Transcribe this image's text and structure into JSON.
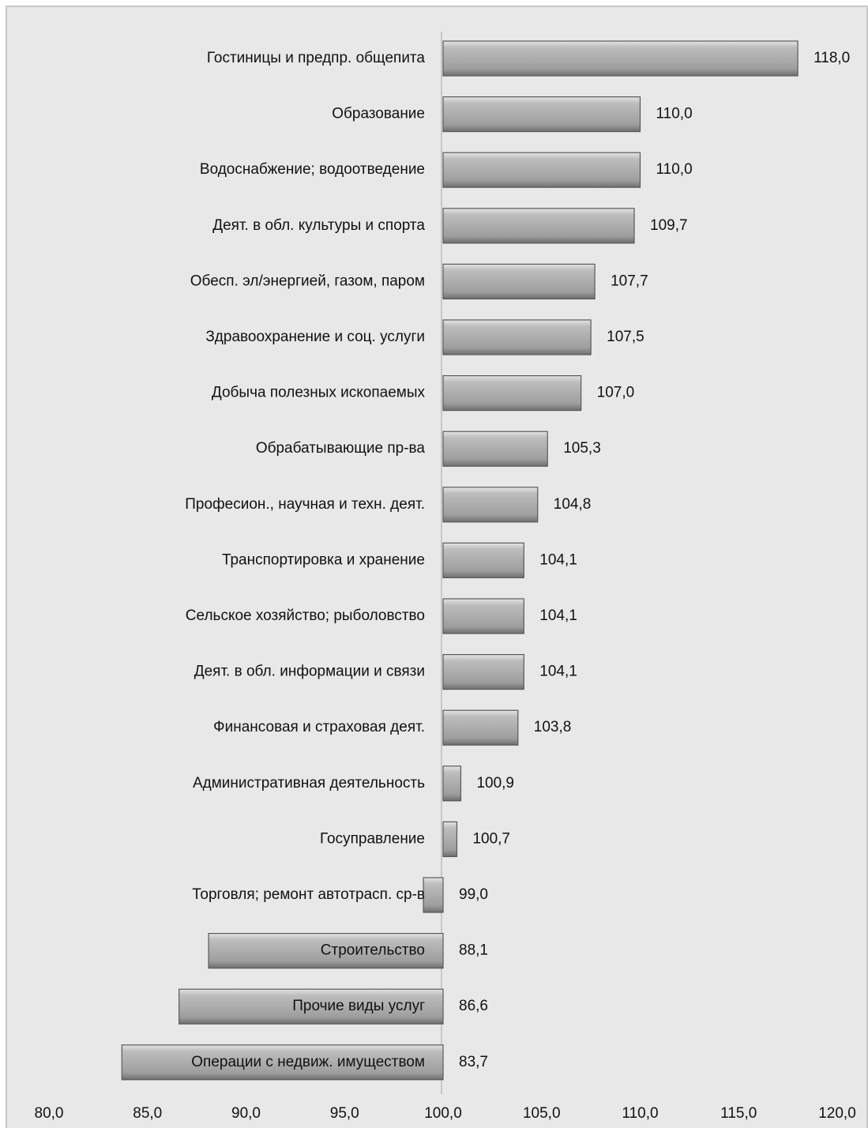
{
  "chart_data": {
    "type": "hbar",
    "categories": [
      "Гостиницы и предпр. общепита",
      "Образование",
      "Водоснабжение; водоотведение",
      "Деят. в обл. культуры и спорта",
      "Обесп. эл/энергией, газом, паром",
      "Здравоохранение и соц. услуги",
      "Добыча полезных ископаемых",
      "Обрабатывающие пр-ва",
      "Професион., научная и техн. деят.",
      "Транспортировка и хранение",
      "Сельское хозяйство; рыболовство",
      "Деят. в обл. информации и связи",
      "Финансовая и страховая деят.",
      "Административная деятельность",
      "Госуправление",
      "Торговля; ремонт автотрасп. ср-в",
      "Строительство",
      "Прочие виды услуг",
      "Операции с недвиж. имуществом"
    ],
    "values": [
      118.0,
      110.0,
      110.0,
      109.7,
      107.7,
      107.5,
      107.0,
      105.3,
      104.8,
      104.1,
      104.1,
      104.1,
      103.8,
      100.9,
      100.7,
      99.0,
      88.1,
      86.6,
      83.7
    ],
    "value_labels": [
      "118,0",
      "110,0",
      "110,0",
      "109,7",
      "107,7",
      "107,5",
      "107,0",
      "105,3",
      "104,8",
      "104,1",
      "104,1",
      "104,1",
      "103,8",
      "100,9",
      "100,7",
      "99,0",
      "88,1",
      "86,6",
      "83,7"
    ],
    "bar_base": 100,
    "color": "#a6a6a6",
    "xlim": [
      80,
      120
    ],
    "xticks": [
      {
        "value": 80,
        "label": "80,0"
      },
      {
        "value": 85,
        "label": "85,0"
      },
      {
        "value": 90,
        "label": "90,0"
      },
      {
        "value": 95,
        "label": "95,0"
      },
      {
        "value": 100,
        "label": "100,0"
      },
      {
        "value": 105,
        "label": "105,0"
      },
      {
        "value": 110,
        "label": "110,0"
      },
      {
        "value": 115,
        "label": "115,0"
      },
      {
        "value": 120,
        "label": "120,0"
      }
    ],
    "grid": false
  }
}
